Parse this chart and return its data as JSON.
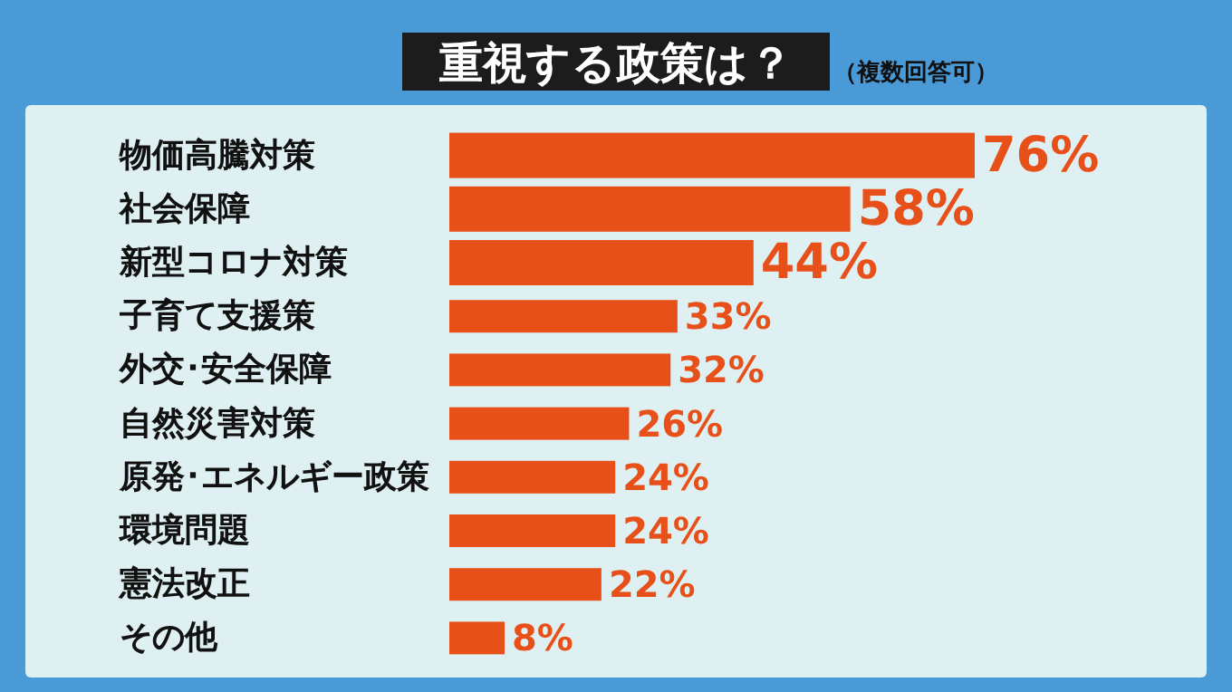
{
  "chart_data": {
    "type": "bar",
    "orientation": "horizontal",
    "title": "重視する政策は？",
    "subtitle": "（複数回答可）",
    "categories": [
      "物価高騰対策",
      "社会保障",
      "新型コロナ対策",
      "子育て支援策",
      "外交･安全保障",
      "自然災害対策",
      "原発･エネルギー政策",
      "環境問題",
      "憲法改正",
      "その他"
    ],
    "values": [
      76,
      58,
      44,
      33,
      32,
      26,
      24,
      24,
      22,
      8
    ],
    "value_labels": [
      "76%",
      "58%",
      "44%",
      "33%",
      "32%",
      "26%",
      "24%",
      "24%",
      "22%",
      "8%"
    ],
    "color": "#e8501a"
  }
}
